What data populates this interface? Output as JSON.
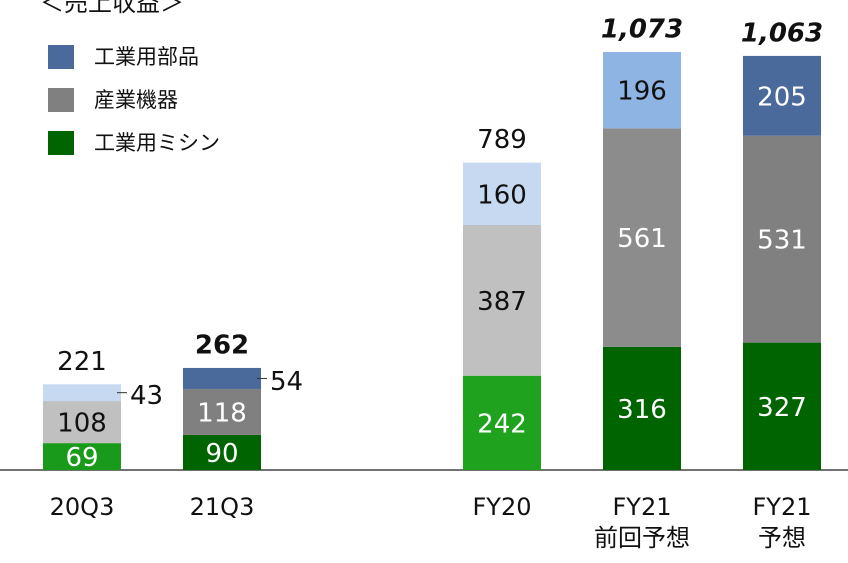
{
  "chart_data": {
    "type": "stacked_bar",
    "title": "＜売上収益＞",
    "categories": [
      "20Q3",
      "21Q3",
      null,
      "FY20",
      "FY21\n前回予想",
      "FY21\n予想"
    ],
    "series": [
      {
        "name": "工業用ミシン",
        "color": "#006400",
        "colors": [
          "#1a9a1a",
          "#006400",
          null,
          "#1fa31f",
          "#006400",
          "#006400"
        ],
        "values": [
          69,
          90,
          null,
          242,
          316,
          327
        ]
      },
      {
        "name": "産業機器",
        "color": "#808080",
        "colors": [
          "#c0c0c0",
          "#808080",
          null,
          "#c0c0c0",
          "#8c8c8c",
          "#808080"
        ],
        "values": [
          108,
          118,
          null,
          387,
          561,
          531
        ]
      },
      {
        "name": "工業用部品",
        "color": "#4a6a9c",
        "colors": [
          "#c6d9f1",
          "#4a6a9c",
          null,
          "#c6d9f1",
          "#8eb4e3",
          "#4a6a9c"
        ],
        "values": [
          43,
          54,
          null,
          160,
          196,
          205
        ]
      }
    ],
    "totals": [
      221,
      262,
      null,
      789,
      1073,
      1063
    ],
    "totals_labels": [
      "221",
      "262",
      null,
      "789",
      "1,073",
      "1,063"
    ],
    "totals_style": [
      "normal",
      "bold",
      null,
      "normal",
      "bold-italic",
      "bold-italic"
    ]
  }
}
